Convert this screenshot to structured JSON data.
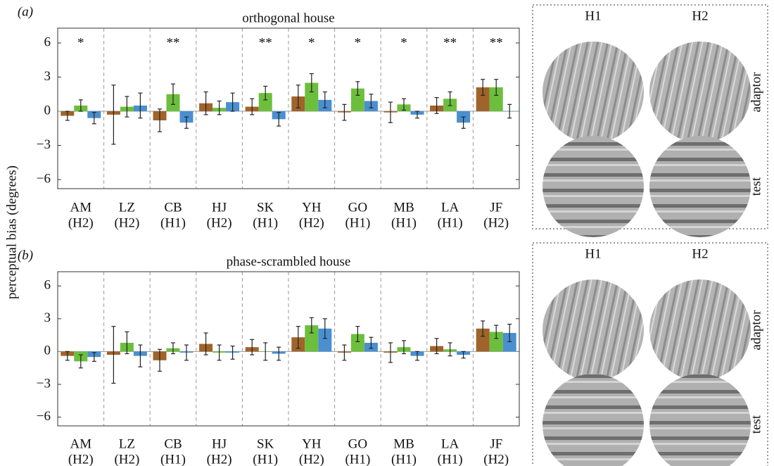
{
  "chart_data": [
    {
      "type": "bar",
      "panel_label": "(a)",
      "title": "orthogonal house",
      "ylabel": "perceptual bias (degrees)",
      "categories": [
        "AM",
        "LZ",
        "CB",
        "HJ",
        "SK",
        "YH",
        "GO",
        "MB",
        "LA",
        "JF"
      ],
      "category_sublabels": [
        "(H2)",
        "(H2)",
        "(H1)",
        "(H2)",
        "(H1)",
        "(H2)",
        "(H1)",
        "(H1)",
        "(H1)",
        "(H2)"
      ],
      "annotations": [
        "*",
        null,
        "**",
        null,
        "**",
        "*",
        "*",
        "*",
        "**",
        "**"
      ],
      "series": [
        {
          "color": "#a0632a",
          "values": [
            -0.4,
            -0.3,
            -0.8,
            0.7,
            0.4,
            1.3,
            -0.1,
            -0.1,
            0.5,
            2.1
          ],
          "errors": [
            0.4,
            2.6,
            1.0,
            1.0,
            0.7,
            1.0,
            0.7,
            0.9,
            0.7,
            0.7
          ]
        },
        {
          "color": "#6cbf3c",
          "values": [
            0.5,
            0.4,
            1.5,
            0.3,
            1.6,
            2.5,
            2.0,
            0.6,
            1.1,
            2.1
          ],
          "errors": [
            0.5,
            0.9,
            0.9,
            0.6,
            0.6,
            0.8,
            0.6,
            0.5,
            0.6,
            0.7
          ]
        },
        {
          "color": "#4a8fd0",
          "values": [
            -0.6,
            0.5,
            -1.0,
            0.8,
            -0.7,
            1.0,
            0.9,
            -0.3,
            -1.0,
            0.0
          ],
          "errors": [
            0.5,
            1.1,
            0.5,
            0.8,
            0.6,
            0.7,
            0.6,
            0.3,
            0.5,
            0.6
          ]
        }
      ],
      "ylim": [
        -6.8,
        7.3
      ],
      "yticks": [
        {
          "value": -6,
          "label": "−6"
        },
        {
          "value": -3,
          "label": "−3"
        },
        0,
        3,
        6
      ]
    },
    {
      "type": "bar",
      "panel_label": "(b)",
      "title": "phase-scrambled house",
      "categories": [
        "AM",
        "LZ",
        "CB",
        "HJ",
        "SK",
        "YH",
        "GO",
        "MB",
        "LA",
        "JF"
      ],
      "category_sublabels": [
        "(H2)",
        "(H2)",
        "(H1)",
        "(H2)",
        "(H1)",
        "(H2)",
        "(H1)",
        "(H1)",
        "(H1)",
        "(H2)"
      ],
      "series": [
        {
          "color": "#a0632a",
          "values": [
            -0.4,
            -0.3,
            -0.8,
            0.7,
            0.4,
            1.3,
            -0.1,
            -0.1,
            0.5,
            2.1
          ],
          "errors": [
            0.4,
            2.6,
            1.0,
            1.0,
            0.7,
            1.0,
            0.7,
            0.9,
            0.7,
            0.7
          ]
        },
        {
          "color": "#6cbf3c",
          "values": [
            -0.9,
            0.8,
            0.3,
            -0.1,
            0.0,
            2.4,
            1.6,
            0.4,
            0.2,
            1.8
          ],
          "errors": [
            0.6,
            1.0,
            0.5,
            0.7,
            0.8,
            0.7,
            0.7,
            0.6,
            0.6,
            0.6
          ]
        },
        {
          "color": "#4a8fd0",
          "values": [
            -0.5,
            -0.4,
            -0.1,
            -0.1,
            -0.2,
            2.1,
            0.8,
            -0.4,
            -0.3,
            1.7
          ],
          "errors": [
            0.4,
            1.0,
            0.7,
            0.6,
            0.6,
            0.9,
            0.5,
            0.4,
            0.3,
            0.8
          ]
        }
      ],
      "ylim": [
        -6.8,
        7.3
      ],
      "yticks": [
        {
          "value": -6,
          "label": "−6"
        },
        {
          "value": -3,
          "label": "−3"
        },
        0,
        3,
        6
      ]
    }
  ],
  "image_panels": [
    {
      "columns": [
        "H1",
        "H2"
      ],
      "rows": [
        "adaptor",
        "test"
      ]
    },
    {
      "columns": [
        "H1",
        "H2"
      ],
      "rows": [
        "adaptor",
        "test"
      ]
    }
  ]
}
